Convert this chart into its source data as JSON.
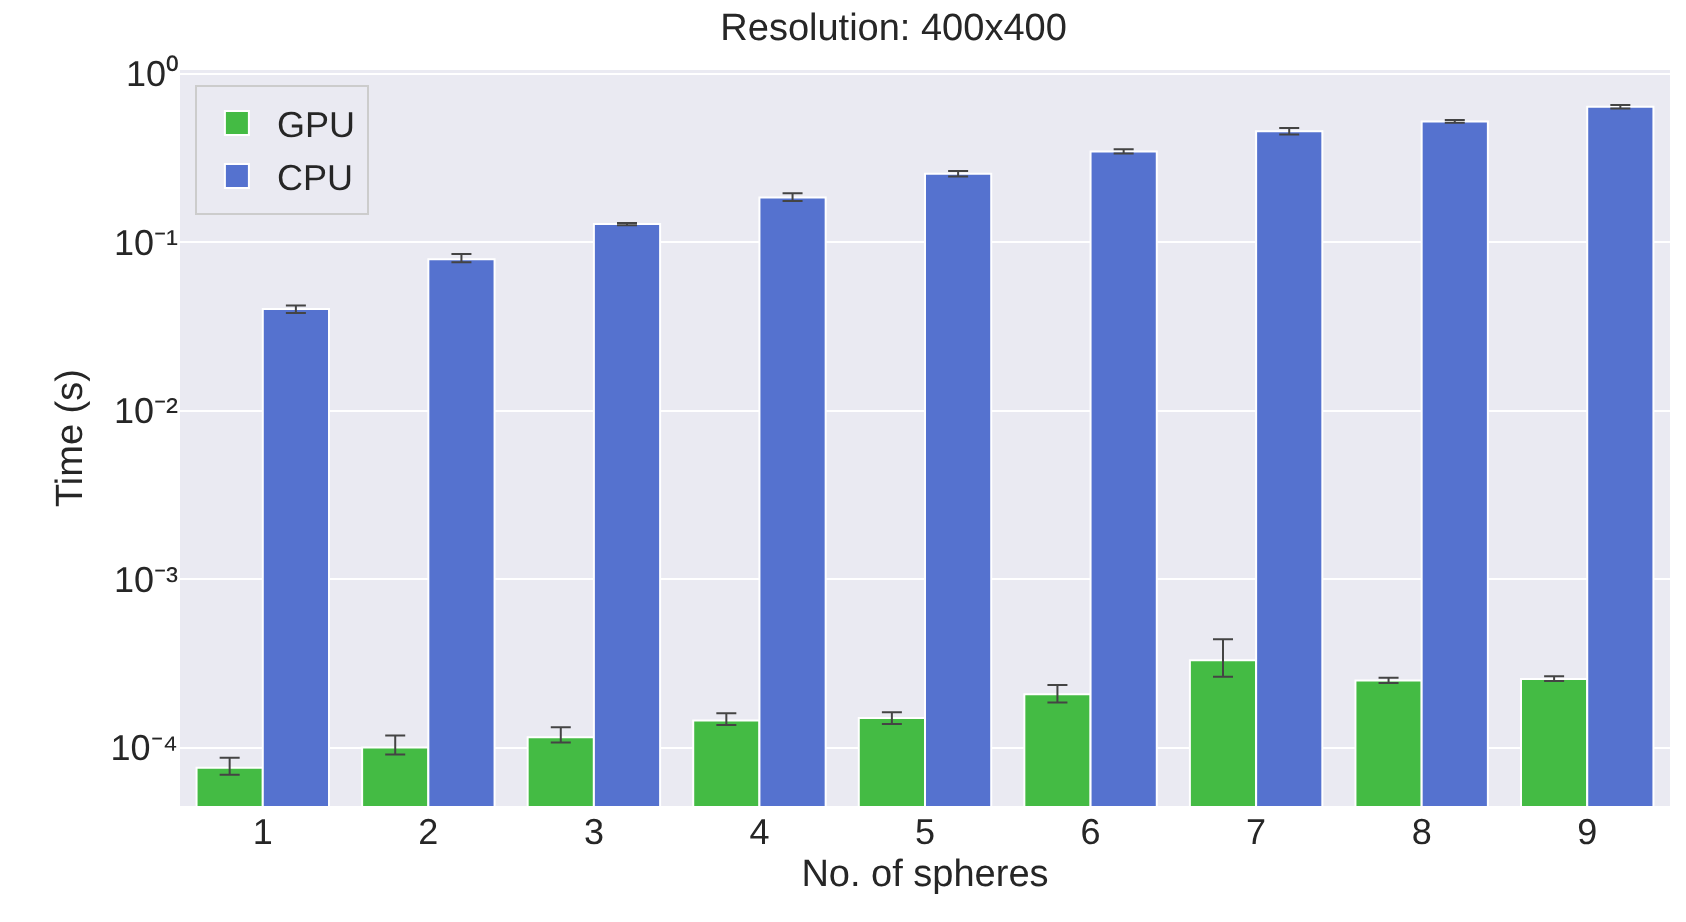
{
  "chart_data": {
    "type": "bar",
    "title": "Resolution: 400x400",
    "xlabel": "No. of spheres",
    "ylabel": "Time (s)",
    "categories": [
      "1",
      "2",
      "3",
      "4",
      "5",
      "6",
      "7",
      "8",
      "9"
    ],
    "series": [
      {
        "name": "GPU",
        "color": "#44bb44",
        "values": [
          7.6e-05,
          0.0001,
          0.000115,
          0.000145,
          0.00015,
          0.000207,
          0.00033,
          0.00025,
          0.000255
        ],
        "errors": [
          [
            6.9e-05,
            8.7e-05
          ],
          [
            9.1e-05,
            0.000118
          ],
          [
            0.000107,
            0.000132
          ],
          [
            0.000136,
            0.00016
          ],
          [
            0.000138,
            0.000162
          ],
          [
            0.000185,
            0.000235
          ],
          [
            0.000263,
            0.00044
          ],
          [
            0.000242,
            0.00026
          ],
          [
            0.000248,
            0.000265
          ]
        ]
      },
      {
        "name": "CPU",
        "color": "#5572cf",
        "values": [
          0.04,
          0.079,
          0.128,
          0.184,
          0.254,
          0.345,
          0.455,
          0.519,
          0.636
        ],
        "errors": [
          [
            0.038,
            0.042
          ],
          [
            0.076,
            0.085
          ],
          [
            0.126,
            0.13
          ],
          [
            0.175,
            0.195
          ],
          [
            0.245,
            0.264
          ],
          [
            0.335,
            0.355
          ],
          [
            0.435,
            0.475
          ],
          [
            0.51,
            0.53
          ],
          [
            0.62,
            0.65
          ]
        ]
      }
    ],
    "log": "y",
    "ylim": [
      4.5e-05,
      1.05
    ],
    "yticks": [
      {
        "value": 0.0001,
        "label": "10⁻⁴"
      },
      {
        "value": 0.001,
        "label": "10⁻³"
      },
      {
        "value": 0.01,
        "label": "10⁻²"
      },
      {
        "value": 0.1,
        "label": "10⁻¹"
      },
      {
        "value": 1,
        "label": "10⁰"
      }
    ],
    "grid": "y",
    "legend": "top left"
  }
}
